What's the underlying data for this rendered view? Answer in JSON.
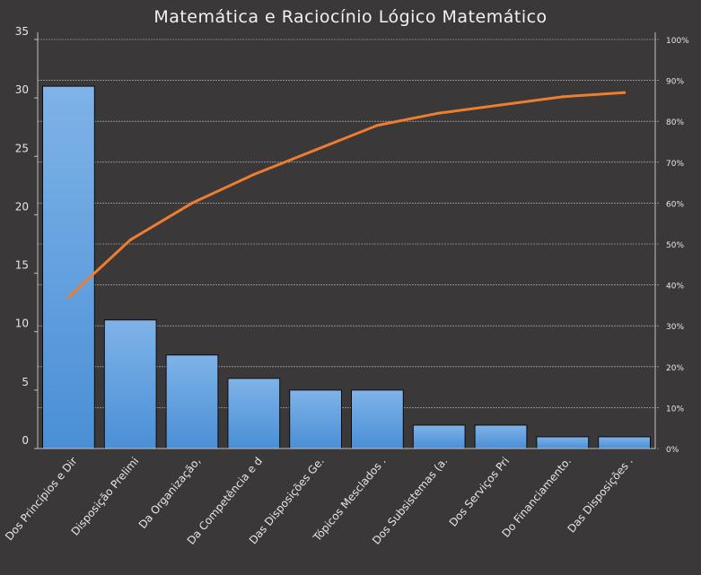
{
  "chart_data": {
    "type": "bar",
    "title": "Matemática e Raciocínio Lógico Matemático",
    "categories": [
      "Dos Princípios e Dir",
      "Disposição Prelimi",
      "Da Organização,",
      "Da Competência e d",
      "Das Disposições Ge.",
      "Tópicos Mesclados .",
      "Dos Subsistemas (a.",
      "Dos Serviços Pri",
      "Do Financiamento.",
      "Das Disposições ."
    ],
    "values": [
      31,
      11,
      8,
      6,
      5,
      5,
      2,
      2,
      1,
      1
    ],
    "cumulative_percent": [
      37,
      51,
      60,
      67,
      73,
      79,
      82,
      84,
      86,
      87
    ],
    "ylim": [
      0,
      35
    ],
    "yticks": [
      0,
      5,
      10,
      15,
      20,
      25,
      30,
      35
    ],
    "y2lim": [
      0,
      100
    ],
    "y2ticks": [
      "0%",
      "10%",
      "20%",
      "30%",
      "40%",
      "50%",
      "60%",
      "70%",
      "80%",
      "90%",
      "100%"
    ],
    "grid": true,
    "xlabel": "",
    "ylabel": "",
    "colors": {
      "background": "#3a3838",
      "bar_top": "#7fb3e8",
      "bar_bottom": "#4a8fd6",
      "line": "#ed7d31",
      "text": "#e6e6e6",
      "grid": "#d9d9d9"
    }
  }
}
